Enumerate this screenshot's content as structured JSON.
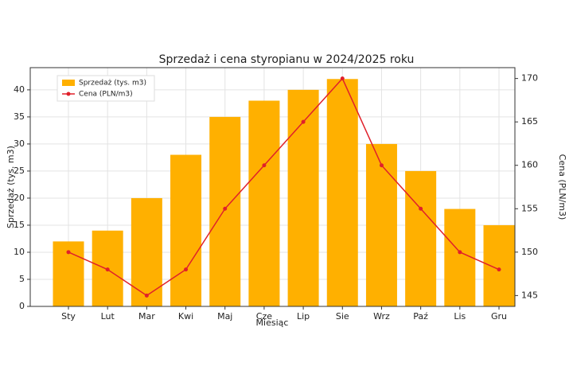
{
  "chart_data": {
    "type": "bar",
    "title": "Sprzedaż i cena styropianu w 2024/2025 roku",
    "x_label": "Miesiąc",
    "y_label": "Sprzedaż (tys. m3)",
    "y2_label": "Cena (PLN/m3)",
    "categories": [
      "Sty",
      "Lut",
      "Mar",
      "Kwi",
      "Maj",
      "Cze",
      "Lip",
      "Sie",
      "Wrz",
      "Paź",
      "Lis",
      "Gru"
    ],
    "series": [
      {
        "name": "Sprzedaż (tys. m3)",
        "type": "bar",
        "color": "#ffb000",
        "values": [
          12,
          14,
          20,
          28,
          35,
          38,
          40,
          42,
          30,
          25,
          18,
          15
        ]
      },
      {
        "name": "Cena (PLN/m3)",
        "type": "line",
        "axis": "y2",
        "color": "#e0202a",
        "values": [
          150,
          148,
          145,
          148,
          155,
          160,
          165,
          170,
          160,
          155,
          150,
          148
        ]
      }
    ],
    "ylim": [
      0,
      44.1
    ],
    "yticks": [
      0,
      5,
      10,
      15,
      20,
      25,
      30,
      35,
      40
    ],
    "y2lim": [
      143.75,
      171.25
    ],
    "y2ticks": [
      145,
      150,
      155,
      160,
      165,
      170
    ],
    "grid": true,
    "legend": "upper-left"
  }
}
